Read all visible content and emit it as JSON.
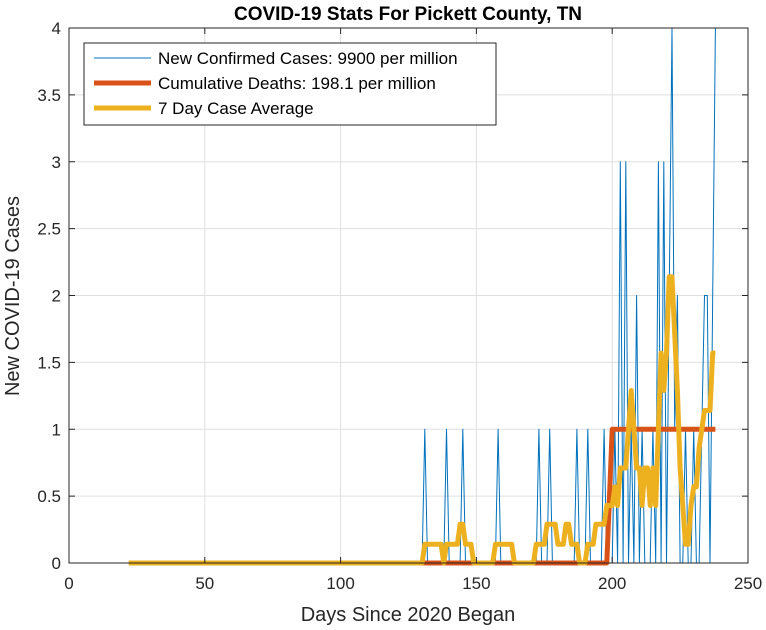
{
  "chart_data": {
    "type": "line",
    "title": "COVID-19 Stats For Pickett County, TN",
    "xlabel": "Days Since 2020 Began",
    "ylabel": "New COVID-19 Cases",
    "xlim": [
      0,
      250
    ],
    "ylim": [
      0,
      4
    ],
    "xticks": [
      0,
      50,
      100,
      150,
      200,
      250
    ],
    "yticks": [
      0,
      0.5,
      1,
      1.5,
      2,
      2.5,
      3,
      3.5,
      4
    ],
    "xtick_labels": [
      "0",
      "50",
      "100",
      "150",
      "200",
      "250"
    ],
    "ytick_labels": [
      "0",
      "0.5",
      "1",
      "1.5",
      "2",
      "2.5",
      "3",
      "3.5",
      "4"
    ],
    "grid": true,
    "legend_position": "top-left",
    "series": [
      {
        "name": "New Confirmed Cases: 9900 per million",
        "color": "#0072BD",
        "style": "thin",
        "x": [
          22,
          130,
          131,
          132,
          138,
          139,
          140,
          144,
          145,
          146,
          157,
          158,
          159,
          172,
          173,
          174,
          176,
          177,
          178,
          186,
          187,
          188,
          190,
          191,
          192,
          196,
          197,
          198,
          200,
          201,
          202,
          203,
          204,
          205,
          206,
          207,
          208,
          209,
          210,
          211,
          212,
          213,
          214,
          215,
          216,
          217,
          218,
          219,
          220,
          221,
          222,
          223,
          224,
          225,
          226,
          227,
          228,
          229,
          230,
          231,
          232,
          233,
          234,
          235,
          236,
          237,
          238
        ],
        "values": [
          0,
          0,
          1,
          0,
          0,
          1,
          0,
          0,
          1,
          0,
          0,
          1,
          0,
          0,
          1,
          0,
          0,
          1,
          0,
          0,
          1,
          0,
          0,
          1,
          0,
          0,
          1,
          0,
          0,
          1,
          0,
          3,
          0,
          3,
          0,
          1,
          0,
          2,
          0,
          1,
          0,
          0,
          0,
          1,
          0,
          3,
          0,
          3,
          0,
          2,
          4,
          1,
          2,
          0,
          0,
          1,
          0,
          0,
          1,
          0,
          0,
          1,
          2,
          2,
          0,
          2,
          4
        ]
      },
      {
        "name": "Cumulative Deaths: 198.1 per million",
        "color": "#D95319",
        "style": "thick",
        "x": [
          22,
          198,
          200,
          238
        ],
        "values": [
          0,
          0,
          1,
          1
        ]
      },
      {
        "name": "7 Day Case Average",
        "color": "#EDB120",
        "style": "thick",
        "x": [
          22,
          130,
          131,
          137,
          138,
          139,
          142,
          143,
          144,
          145,
          146,
          147,
          148,
          149,
          156,
          157,
          158,
          163,
          164,
          165,
          171,
          172,
          173,
          175,
          176,
          177,
          179,
          180,
          181,
          182,
          183,
          184,
          185,
          186,
          187,
          188,
          189,
          190,
          191,
          193,
          194,
          196,
          197,
          198,
          200,
          201,
          202,
          203,
          205,
          206,
          207,
          209,
          210,
          211,
          212,
          213,
          214,
          215,
          216,
          217,
          218,
          219,
          220,
          221,
          222,
          223,
          224,
          225,
          226,
          227,
          228,
          229,
          230,
          231,
          232,
          233,
          234,
          235,
          236,
          237,
          238
        ],
        "values": [
          0,
          0,
          0.14,
          0.14,
          0,
          0.14,
          0.14,
          0.14,
          0.29,
          0.29,
          0.14,
          0.14,
          0.14,
          0,
          0,
          0.14,
          0.14,
          0.14,
          0,
          0,
          0,
          0.14,
          0.14,
          0.14,
          0.29,
          0.29,
          0.29,
          0.14,
          0.14,
          0.14,
          0.29,
          0.29,
          0.14,
          0.14,
          0.14,
          0,
          0,
          0,
          0.14,
          0.14,
          0.29,
          0.29,
          0.29,
          0.43,
          0.43,
          0.57,
          0.43,
          0.71,
          0.71,
          1,
          1.29,
          0.71,
          0.71,
          0.43,
          0.71,
          0.71,
          0.43,
          0.71,
          0.43,
          1,
          1.57,
          1.29,
          1.57,
          2.14,
          2.14,
          1.71,
          1.29,
          0.71,
          0.43,
          0.14,
          0.14,
          0.43,
          0.57,
          0.57,
          0.86,
          1,
          1.14,
          1.14,
          1.14,
          1.57,
          1.57
        ]
      }
    ]
  }
}
